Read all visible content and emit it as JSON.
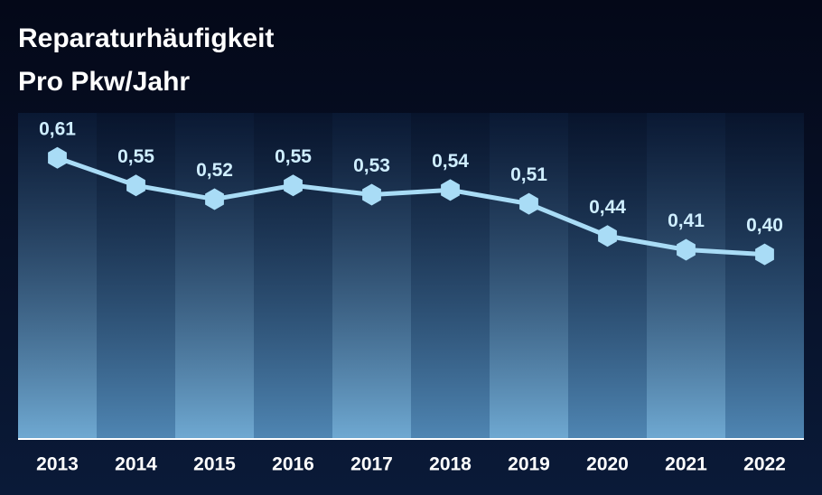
{
  "chart_data": {
    "type": "line",
    "title": "Reparaturhäufigkeit",
    "subtitle": "Pro Pkw/Jahr",
    "categories": [
      "2013",
      "2014",
      "2015",
      "2016",
      "2017",
      "2018",
      "2019",
      "2020",
      "2021",
      "2022"
    ],
    "values": [
      0.61,
      0.55,
      0.52,
      0.55,
      0.53,
      0.54,
      0.51,
      0.44,
      0.41,
      0.4
    ],
    "value_labels": [
      "0,61",
      "0,55",
      "0,52",
      "0,55",
      "0,53",
      "0,54",
      "0,51",
      "0,44",
      "0,41",
      "0,40"
    ],
    "color": "#a9dcf6",
    "ylim": [
      0,
      0.7
    ]
  }
}
